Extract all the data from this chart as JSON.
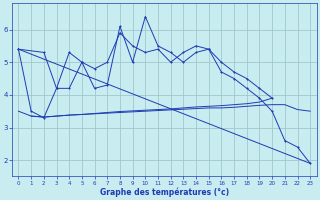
{
  "background_color": "#c8ecf0",
  "grid_color": "#a0c8cc",
  "line_color": "#1e3cb4",
  "xlabel": "Graphe des températures (°c)",
  "xlim": [
    -0.5,
    23.5
  ],
  "ylim": [
    1.5,
    6.8
  ],
  "yticks": [
    2,
    3,
    4,
    5,
    6
  ],
  "xticks": [
    0,
    1,
    2,
    3,
    4,
    5,
    6,
    7,
    8,
    9,
    10,
    11,
    12,
    13,
    14,
    15,
    16,
    17,
    18,
    19,
    20,
    21,
    22,
    23
  ],
  "series1_marked": {
    "x": [
      0,
      1,
      2,
      3,
      4,
      5,
      6,
      7,
      8,
      9,
      10,
      11,
      12,
      13,
      14,
      15,
      16,
      17,
      18,
      19,
      20,
      21,
      22,
      23
    ],
    "y": [
      5.4,
      3.5,
      3.3,
      4.2,
      5.3,
      5.0,
      4.2,
      4.3,
      6.1,
      5.0,
      6.4,
      5.5,
      5.3,
      5.0,
      5.3,
      5.4,
      4.7,
      4.5,
      4.2,
      3.9,
      3.5,
      2.6,
      2.4,
      1.9
    ]
  },
  "series2_marked": {
    "x": [
      0,
      2,
      3,
      4,
      5,
      6,
      7,
      8,
      9,
      10,
      11,
      12,
      13,
      14,
      15,
      16,
      17,
      18,
      19,
      20
    ],
    "y": [
      5.4,
      5.3,
      4.2,
      4.2,
      5.0,
      4.8,
      5.0,
      5.9,
      5.5,
      5.3,
      5.4,
      5.0,
      5.3,
      5.5,
      5.4,
      5.0,
      4.7,
      4.5,
      4.2,
      3.9
    ]
  },
  "series3_trend": {
    "x": [
      0,
      23
    ],
    "y": [
      5.4,
      1.9
    ]
  },
  "series4_flat": {
    "x": [
      0,
      1,
      2,
      3,
      4,
      5,
      6,
      7,
      8,
      9,
      10,
      11,
      12,
      13,
      14,
      15,
      16,
      17,
      18,
      19,
      20,
      21,
      22,
      23
    ],
    "y": [
      3.5,
      3.35,
      3.32,
      3.35,
      3.38,
      3.4,
      3.42,
      3.44,
      3.46,
      3.48,
      3.5,
      3.52,
      3.54,
      3.56,
      3.58,
      3.6,
      3.6,
      3.62,
      3.65,
      3.68,
      3.7,
      3.7,
      3.55,
      3.5
    ]
  },
  "series5_flat2": {
    "x": [
      1,
      2,
      3,
      4,
      5,
      6,
      7,
      8,
      9,
      10,
      11,
      12,
      13,
      14,
      15,
      16,
      17,
      18,
      19,
      20
    ],
    "y": [
      3.35,
      3.32,
      3.35,
      3.38,
      3.4,
      3.43,
      3.46,
      3.49,
      3.51,
      3.53,
      3.55,
      3.57,
      3.6,
      3.63,
      3.65,
      3.67,
      3.7,
      3.73,
      3.78,
      3.9
    ]
  }
}
